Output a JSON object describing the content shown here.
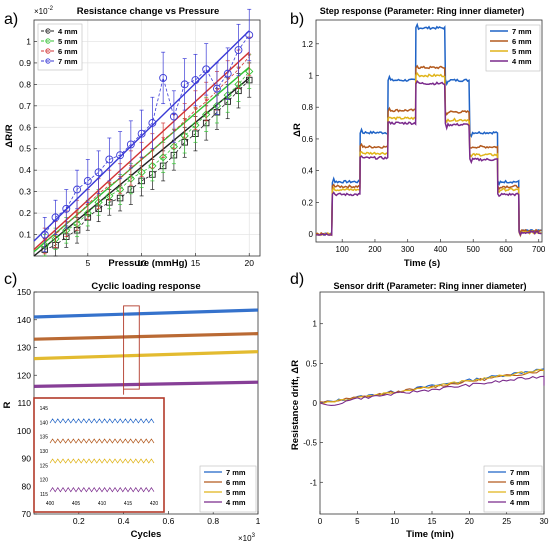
{
  "colors": {
    "mm7": "#1f63c6",
    "mm6": "#b35a1e",
    "mm5": "#e0b41a",
    "mm4": "#7a2a8c",
    "p7": "#3a3ad6",
    "p6": "#d23434",
    "p5": "#34c234",
    "p4": "#222222",
    "inset_border": "#b23a2a"
  },
  "chart_data": [
    {
      "panel_label": "a)",
      "type": "scatter",
      "title": "Resistance change vs Pressure",
      "xlabel": "Pressure (mmHg)",
      "ylabel": "ΔR/R",
      "exponent_label": "×10",
      "exponent_power": "-2",
      "xlim": [
        0,
        21
      ],
      "ylim": [
        0,
        1.1
      ],
      "xticks": [
        5,
        10,
        15,
        20
      ],
      "yticks": [
        0.1,
        0.2,
        0.3,
        0.4,
        0.5,
        0.6,
        0.7,
        0.8,
        0.9,
        1
      ],
      "legend_position": "top-left",
      "series": [
        {
          "name": "4 mm",
          "color_key": "p4",
          "marker": "square",
          "x": [
            1,
            2,
            3,
            4,
            5,
            6,
            7,
            8,
            9,
            10,
            11,
            12,
            13,
            14,
            15,
            16,
            17,
            18,
            19,
            20
          ],
          "y": [
            0.03,
            0.05,
            0.09,
            0.12,
            0.18,
            0.22,
            0.25,
            0.27,
            0.31,
            0.35,
            0.38,
            0.42,
            0.47,
            0.53,
            0.57,
            0.62,
            0.67,
            0.72,
            0.77,
            0.82
          ],
          "err": [
            0.05,
            0.05,
            0.05,
            0.06,
            0.06,
            0.06,
            0.06,
            0.06,
            0.07,
            0.07,
            0.07,
            0.07,
            0.07,
            0.07,
            0.08,
            0.08,
            0.08,
            0.08,
            0.08,
            0.08
          ],
          "fit": [
            [
              0,
              0.0
            ],
            [
              20,
              0.83
            ]
          ]
        },
        {
          "name": "5 mm",
          "color_key": "p5",
          "marker": "diamond",
          "x": [
            1,
            2,
            3,
            4,
            5,
            6,
            7,
            8,
            9,
            10,
            11,
            12,
            13,
            14,
            15,
            16,
            17,
            18,
            19,
            20
          ],
          "y": [
            0.05,
            0.08,
            0.12,
            0.15,
            0.2,
            0.25,
            0.28,
            0.31,
            0.36,
            0.39,
            0.42,
            0.46,
            0.51,
            0.56,
            0.61,
            0.66,
            0.7,
            0.75,
            0.8,
            0.86
          ],
          "err": [
            0.05,
            0.05,
            0.06,
            0.06,
            0.06,
            0.06,
            0.06,
            0.07,
            0.07,
            0.07,
            0.07,
            0.07,
            0.08,
            0.08,
            0.08,
            0.08,
            0.08,
            0.08,
            0.08,
            0.08
          ],
          "fit": [
            [
              0,
              0.02
            ],
            [
              20,
              0.88
            ]
          ]
        },
        {
          "name": "6 mm",
          "color_key": "p6",
          "marker": "star",
          "x": [
            1,
            2,
            3,
            4,
            5,
            6,
            7,
            8,
            9,
            10,
            11,
            12,
            13,
            14,
            15,
            16,
            17,
            18,
            19,
            20
          ],
          "y": [
            0.07,
            0.1,
            0.15,
            0.19,
            0.24,
            0.29,
            0.33,
            0.36,
            0.41,
            0.45,
            0.49,
            0.54,
            0.58,
            0.63,
            0.68,
            0.72,
            0.77,
            0.82,
            0.87,
            0.93
          ],
          "err": [
            0.06,
            0.06,
            0.06,
            0.07,
            0.07,
            0.07,
            0.07,
            0.07,
            0.08,
            0.08,
            0.08,
            0.08,
            0.08,
            0.08,
            0.09,
            0.09,
            0.09,
            0.09,
            0.09,
            0.09
          ],
          "fit": [
            [
              0,
              0.03
            ],
            [
              20,
              0.95
            ]
          ]
        },
        {
          "name": "7 mm",
          "color_key": "p7",
          "marker": "circle",
          "x": [
            1,
            2,
            3,
            4,
            5,
            6,
            7,
            8,
            9,
            10,
            11,
            12,
            13,
            14,
            15,
            16,
            17,
            18,
            19,
            20
          ],
          "y": [
            0.1,
            0.18,
            0.22,
            0.31,
            0.35,
            0.39,
            0.45,
            0.47,
            0.52,
            0.57,
            0.62,
            0.83,
            0.65,
            0.8,
            0.82,
            0.87,
            0.78,
            0.85,
            0.96,
            1.03
          ],
          "err": [
            0.08,
            0.08,
            0.09,
            0.09,
            0.1,
            0.1,
            0.1,
            0.11,
            0.11,
            0.11,
            0.12,
            0.12,
            0.12,
            0.12,
            0.12,
            0.12,
            0.12,
            0.12,
            0.12,
            0.12
          ],
          "fit": [
            [
              0,
              0.07
            ],
            [
              20,
              1.05
            ]
          ]
        }
      ]
    },
    {
      "panel_label": "b)",
      "type": "line",
      "title": "Step response (Parameter: Ring inner diameter)",
      "xlabel": "Time (s)",
      "ylabel": "ΔR",
      "xlim": [
        20,
        710
      ],
      "ylim": [
        -0.05,
        1.35
      ],
      "xticks": [
        100,
        200,
        300,
        400,
        500,
        600,
        700
      ],
      "yticks": [
        0,
        0.2,
        0.4,
        0.6,
        0.8,
        1,
        1.2
      ],
      "legend_position": "top-right",
      "step_times": [
        0,
        70,
        155,
        240,
        325,
        415,
        490,
        575,
        640,
        710
      ],
      "series": [
        {
          "name": "7 mm",
          "color_key": "mm7",
          "levels": [
            0.0,
            0.33,
            0.64,
            0.97,
            1.3,
            0.97,
            0.64,
            0.33,
            0.02
          ]
        },
        {
          "name": "6 mm",
          "color_key": "mm6",
          "levels": [
            0.0,
            0.3,
            0.55,
            0.78,
            1.05,
            0.77,
            0.55,
            0.3,
            0.02
          ]
        },
        {
          "name": "5 mm",
          "color_key": "mm5",
          "levels": [
            0.0,
            0.28,
            0.51,
            0.73,
            1.0,
            0.72,
            0.5,
            0.28,
            0.01
          ]
        },
        {
          "name": "4 mm",
          "color_key": "mm4",
          "levels": [
            0.0,
            0.25,
            0.48,
            0.7,
            0.95,
            0.69,
            0.47,
            0.25,
            0.01
          ]
        }
      ]
    },
    {
      "panel_label": "c)",
      "type": "line",
      "title": "Cyclic loading response",
      "xlabel": "Cycles",
      "ylabel": "R",
      "exponent_label": "×10",
      "exponent_power": "3",
      "xlim": [
        0,
        1
      ],
      "ylim": [
        70,
        150
      ],
      "xticks": [
        0.2,
        0.4,
        0.6,
        0.8,
        1
      ],
      "yticks": [
        70,
        80,
        90,
        100,
        110,
        120,
        130,
        140,
        150
      ],
      "legend_position": "bottom-right",
      "series": [
        {
          "name": "7 mm",
          "color_key": "mm7",
          "start": 141,
          "end": 143.5
        },
        {
          "name": "6 mm",
          "color_key": "mm6",
          "start": 133,
          "end": 135
        },
        {
          "name": "5 mm",
          "color_key": "mm5",
          "start": 126,
          "end": 128.5
        },
        {
          "name": "4 mm",
          "color_key": "mm4",
          "start": 116,
          "end": 117.5
        }
      ],
      "inset": {
        "xticks": [
          400,
          405,
          410,
          415,
          420
        ],
        "yticks": [
          115,
          120,
          125,
          130,
          135,
          140,
          145
        ],
        "xlim": [
          400,
          420
        ],
        "ylim": [
          115,
          145
        ],
        "series": [
          {
            "color_key": "mm7",
            "level": 140.5
          },
          {
            "color_key": "mm6",
            "level": 133.5
          },
          {
            "color_key": "mm5",
            "level": 126.5
          },
          {
            "color_key": "mm4",
            "level": 116.5
          }
        ]
      }
    },
    {
      "panel_label": "d)",
      "type": "line",
      "title": "Sensor drift (Parameter: Ring inner diameter)",
      "xlabel": "Time (min)",
      "ylabel": "Resistance drift, ΔR",
      "xlim": [
        0,
        30
      ],
      "ylim": [
        -1.4,
        1.4
      ],
      "xticks": [
        0,
        5,
        10,
        15,
        20,
        25,
        30
      ],
      "yticks": [
        -1,
        -0.5,
        0,
        0.5,
        1
      ],
      "legend_position": "bottom-right",
      "series": [
        {
          "name": "7 mm",
          "color_key": "mm7",
          "end": 0.43
        },
        {
          "name": "6 mm",
          "color_key": "mm6",
          "end": 0.41
        },
        {
          "name": "5 mm",
          "color_key": "mm5",
          "end": 0.42
        },
        {
          "name": "4 mm",
          "color_key": "mm4",
          "end": 0.34
        }
      ]
    }
  ]
}
